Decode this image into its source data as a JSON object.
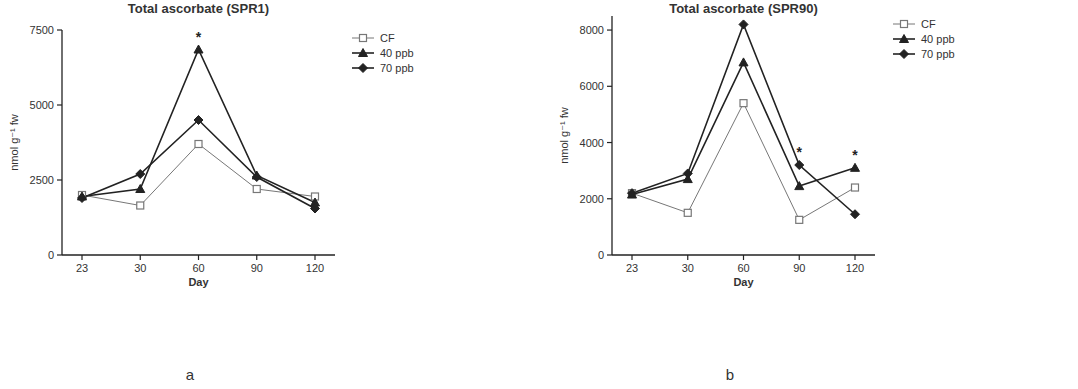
{
  "chart_data": [
    {
      "type": "line",
      "title": "Total ascorbate (SPR1)",
      "panel_label": "a",
      "x_label": "Day",
      "y_label": "nmol g⁻¹ fw",
      "categories": [
        23,
        30,
        60,
        90,
        120
      ],
      "ylim": [
        0,
        7500
      ],
      "yticks": [
        0,
        2500,
        5000,
        7500
      ],
      "legend": "right",
      "series": [
        {
          "name": "CF",
          "color": "#777777",
          "marker": "open-square",
          "values": [
            2000,
            1650,
            3700,
            2200,
            1950
          ]
        },
        {
          "name": "40 ppb",
          "color": "#222222",
          "marker": "triangle",
          "values": [
            1950,
            2200,
            6850,
            2650,
            1750
          ]
        },
        {
          "name": "70 ppb",
          "color": "#222222",
          "marker": "diamond",
          "values": [
            1900,
            2700,
            4500,
            2600,
            1550
          ]
        }
      ],
      "annotations": [
        {
          "text": "*",
          "category": 60
        }
      ]
    },
    {
      "type": "line",
      "title": "Total ascorbate (SPR90)",
      "panel_label": "b",
      "x_label": "Day",
      "y_label": "nmol g⁻¹ fw",
      "categories": [
        23,
        30,
        60,
        90,
        120
      ],
      "ylim": [
        0,
        8500
      ],
      "yticks": [
        0,
        2000,
        4000,
        6000,
        8000
      ],
      "legend": "right",
      "series": [
        {
          "name": "CF",
          "color": "#777777",
          "marker": "open-square",
          "values": [
            2200,
            1500,
            5400,
            1250,
            2400
          ]
        },
        {
          "name": "40 ppb",
          "color": "#222222",
          "marker": "triangle",
          "values": [
            2150,
            2700,
            6850,
            2450,
            3100
          ]
        },
        {
          "name": "70 ppb",
          "color": "#222222",
          "marker": "diamond",
          "values": [
            2200,
            2900,
            8200,
            3200,
            1450
          ]
        }
      ],
      "annotations": [
        {
          "text": "*",
          "category": 90
        },
        {
          "text": "*",
          "category": 120
        }
      ]
    }
  ]
}
